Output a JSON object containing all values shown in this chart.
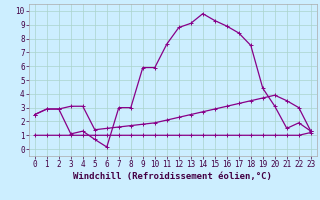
{
  "xlabel": "Windchill (Refroidissement éolien,°C)",
  "bg_color": "#cceeff",
  "line_color": "#880088",
  "xlim": [
    -0.5,
    23.5
  ],
  "ylim": [
    -0.5,
    10.5
  ],
  "xticks": [
    0,
    1,
    2,
    3,
    4,
    5,
    6,
    7,
    8,
    9,
    10,
    11,
    12,
    13,
    14,
    15,
    16,
    17,
    18,
    19,
    20,
    21,
    22,
    23
  ],
  "yticks": [
    0,
    1,
    2,
    3,
    4,
    5,
    6,
    7,
    8,
    9,
    10
  ],
  "series1_x": [
    0,
    1,
    2,
    3,
    4,
    5,
    6,
    7,
    8,
    9,
    10,
    11,
    12,
    13,
    14,
    15,
    16,
    17,
    18,
    19,
    20,
    21,
    22,
    23
  ],
  "series1_y": [
    1.0,
    1.0,
    1.0,
    1.0,
    1.0,
    1.0,
    1.0,
    1.0,
    1.0,
    1.0,
    1.0,
    1.0,
    1.0,
    1.0,
    1.0,
    1.0,
    1.0,
    1.0,
    1.0,
    1.0,
    1.0,
    1.0,
    1.0,
    1.2
  ],
  "series2_x": [
    0,
    1,
    2,
    3,
    4,
    5,
    6,
    7,
    8,
    9,
    10,
    11,
    12,
    13,
    14,
    15,
    16,
    17,
    18,
    19,
    20,
    21,
    22,
    23
  ],
  "series2_y": [
    2.5,
    2.9,
    2.9,
    3.1,
    3.1,
    1.4,
    1.5,
    1.6,
    1.7,
    1.8,
    1.9,
    2.1,
    2.3,
    2.5,
    2.7,
    2.9,
    3.1,
    3.3,
    3.5,
    3.7,
    3.9,
    3.5,
    3.0,
    1.3
  ],
  "series3_x": [
    0,
    1,
    2,
    3,
    4,
    5,
    6,
    7,
    8,
    9,
    10,
    11,
    12,
    13,
    14,
    15,
    16,
    17,
    18,
    19,
    20,
    21,
    22,
    23
  ],
  "series3_y": [
    2.5,
    2.9,
    2.9,
    1.1,
    1.3,
    0.7,
    0.15,
    3.0,
    3.0,
    5.9,
    5.9,
    7.6,
    8.8,
    9.1,
    9.8,
    9.3,
    8.9,
    8.4,
    7.5,
    4.4,
    3.1,
    1.5,
    1.9,
    1.3
  ],
  "tick_fontsize": 5.5,
  "xlabel_fontsize": 6.5,
  "grid_color": "#aad4cc",
  "grid_linewidth": 0.5,
  "line_width": 0.9,
  "marker_size": 2.5
}
